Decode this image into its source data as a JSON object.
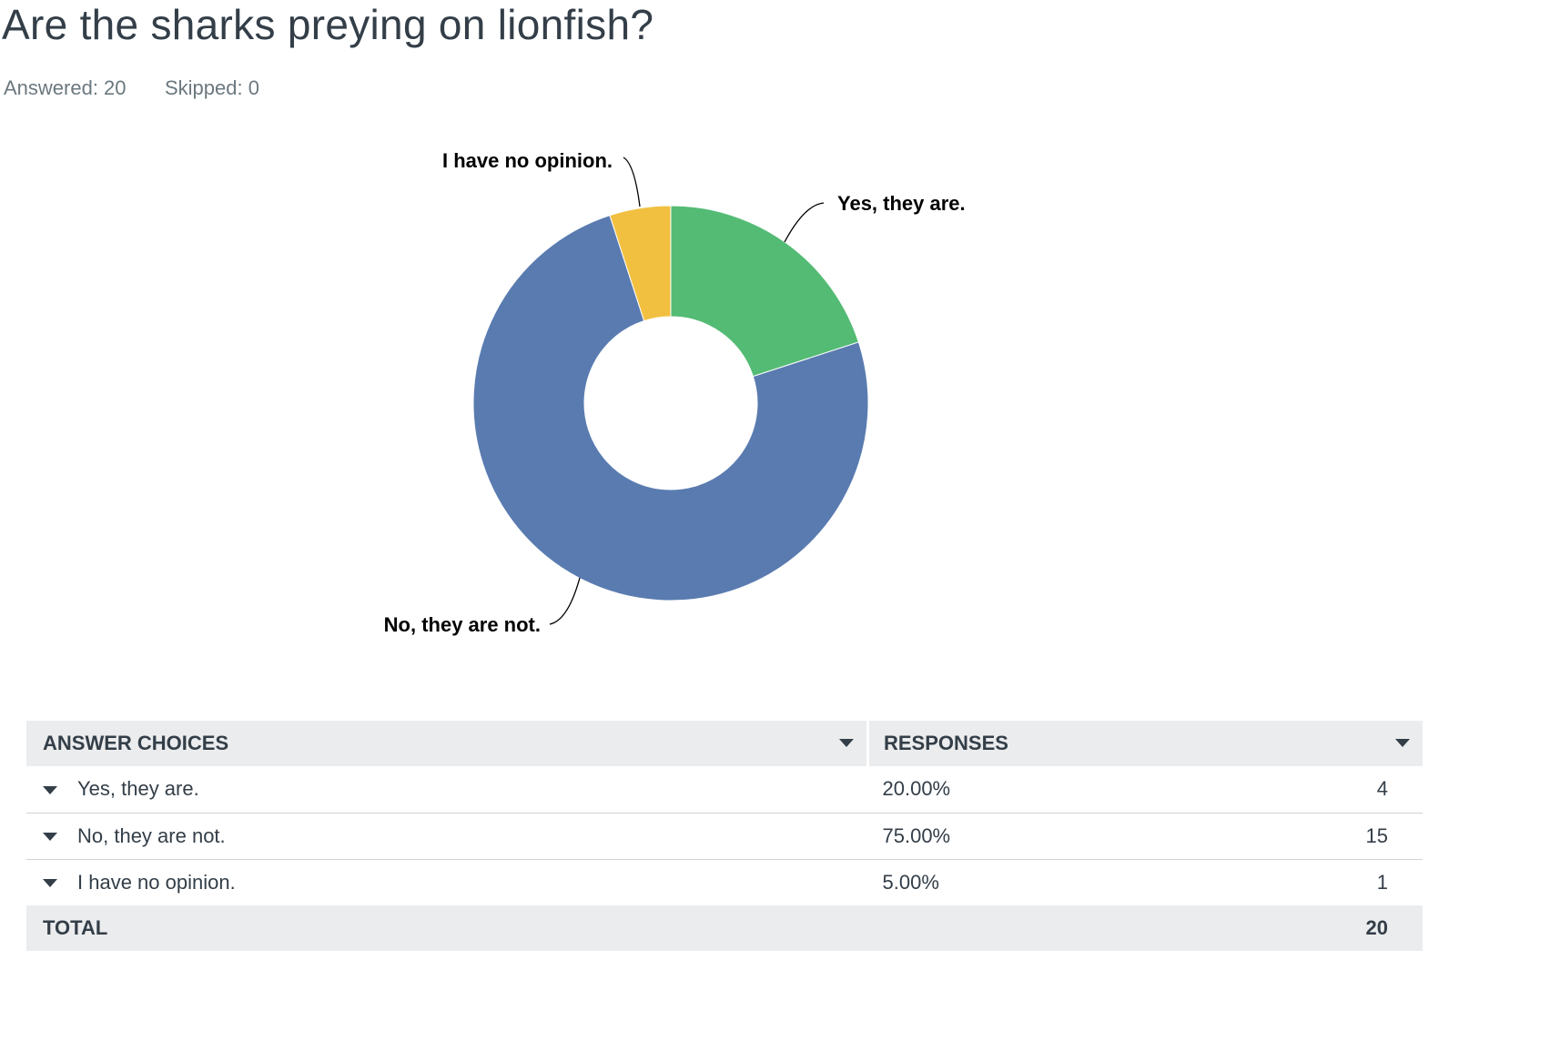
{
  "question": {
    "title": "Are the sharks preying on lionfish?",
    "answered_label": "Answered: 20",
    "skipped_label": "Skipped: 0"
  },
  "chart_data": {
    "type": "pie",
    "donut": true,
    "title": "Are the sharks preying on lionfish?",
    "slices": [
      {
        "label": "Yes, they are.",
        "value": 20,
        "color": "#54bb74"
      },
      {
        "label": "No, they are not.",
        "value": 75,
        "color": "#597bb0"
      },
      {
        "label": "I have no opinion.",
        "value": 5,
        "color": "#f2c041"
      }
    ]
  },
  "table": {
    "headers": {
      "answer_choices": "ANSWER CHOICES",
      "responses": "RESPONSES"
    },
    "rows": [
      {
        "choice": "Yes, they are.",
        "percent": "20.00%",
        "count": "4"
      },
      {
        "choice": "No, they are not.",
        "percent": "75.00%",
        "count": "15"
      },
      {
        "choice": "I have no opinion.",
        "percent": "5.00%",
        "count": "1"
      }
    ],
    "total_label": "TOTAL",
    "total_value": "20"
  }
}
